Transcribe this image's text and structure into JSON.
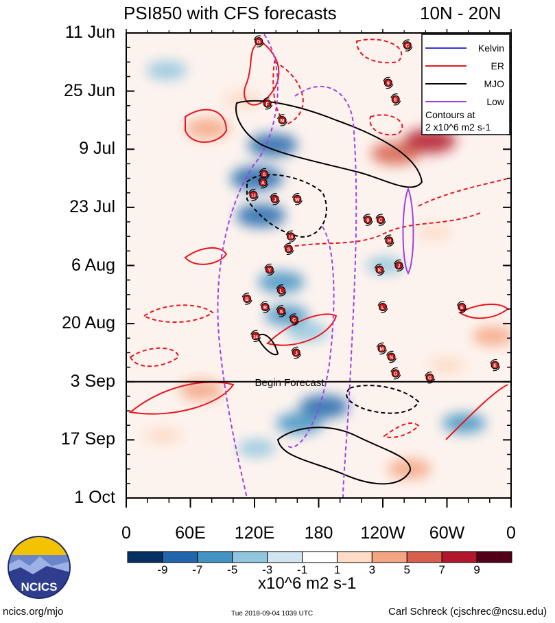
{
  "header": {
    "title": "PSI850 with CFS forecasts",
    "region": "10N - 20N"
  },
  "footer": {
    "site": "ncics.org/mjo",
    "timestamp": "Tue 2018-09-04 1039 UTC",
    "author": "Carl Schreck (cjschrec@ncsu.edu)"
  },
  "logo": {
    "text": "NCICS"
  },
  "chart_data": {
    "type": "heatmap",
    "title": "PSI850 with CFS forecasts",
    "subtitle": "10N - 20N",
    "x_tick_labels": [
      "0",
      "60E",
      "120E",
      "180",
      "120W",
      "60W",
      "0"
    ],
    "x_tick_values_deg_east": [
      0,
      60,
      120,
      180,
      240,
      300,
      360
    ],
    "y_tick_labels": [
      "11 Jun",
      "25 Jun",
      "9 Jul",
      "23 Jul",
      "6 Aug",
      "20 Aug",
      "3 Sep",
      "17 Sep",
      "1 Oct"
    ],
    "y_tick_days_since_11jun": [
      0,
      14,
      28,
      42,
      56,
      70,
      84,
      98,
      112
    ],
    "xlim_deg_east": [
      0,
      360
    ],
    "ylim_days_since_11jun": [
      0,
      112
    ],
    "forecast_start_label": "Begin Forecast",
    "forecast_start_day": 84,
    "legend": {
      "entries": [
        {
          "label": "Kelvin",
          "color": "#3333dd"
        },
        {
          "label": "ER",
          "color": "#e8141c"
        },
        {
          "label": "MJO",
          "color": "#000000"
        },
        {
          "label": "Low",
          "color": "#a040e0"
        }
      ],
      "note_line1": "Contours at",
      "note_line2": "2 x10^6 m2 s-1",
      "placement": "top-right"
    },
    "colorbar": {
      "units": "x10^6 m2 s-1",
      "labels": [
        "-9",
        "-7",
        "-5",
        "-3",
        "-1",
        "1",
        "3",
        "5",
        "7",
        "9"
      ],
      "colors": [
        "#053061",
        "#2166ac",
        "#4393c3",
        "#92c5de",
        "#d1e5f0",
        "#ffffff",
        "#fddbc7",
        "#f4a582",
        "#d6604d",
        "#b2182b",
        "#67001f"
      ]
    },
    "anomaly_blobs": [
      {
        "lon": 38,
        "day": 9,
        "value": -4
      },
      {
        "lon": 108,
        "day": 16,
        "value": 3
      },
      {
        "lon": 76,
        "day": 23,
        "value": 5
      },
      {
        "lon": 137,
        "day": 27,
        "value": -7
      },
      {
        "lon": 122,
        "day": 35,
        "value": -8
      },
      {
        "lon": 126,
        "day": 44,
        "value": -7
      },
      {
        "lon": 145,
        "day": 60,
        "value": -6
      },
      {
        "lon": 150,
        "day": 68,
        "value": -5
      },
      {
        "lon": 170,
        "day": 72,
        "value": -4
      },
      {
        "lon": 252,
        "day": 29,
        "value": 7
      },
      {
        "lon": 284,
        "day": 26,
        "value": 8
      },
      {
        "lon": 242,
        "day": 56,
        "value": -3
      },
      {
        "lon": 288,
        "day": 48,
        "value": 2
      },
      {
        "lon": 70,
        "day": 86,
        "value": 5
      },
      {
        "lon": 35,
        "day": 97,
        "value": 3
      },
      {
        "lon": 185,
        "day": 90,
        "value": -7
      },
      {
        "lon": 162,
        "day": 94,
        "value": -6
      },
      {
        "lon": 316,
        "day": 94,
        "value": -5
      },
      {
        "lon": 265,
        "day": 105,
        "value": 5
      },
      {
        "lon": 122,
        "day": 100,
        "value": -3
      },
      {
        "lon": 343,
        "day": 73,
        "value": 4
      },
      {
        "lon": 300,
        "day": 80,
        "value": 3
      }
    ],
    "storm_markers": [
      {
        "id": "G",
        "lon": 124,
        "day": 2
      },
      {
        "id": "C",
        "lon": 263,
        "day": 3
      },
      {
        "id": "9",
        "lon": 245,
        "day": 12
      },
      {
        "id": "E",
        "lon": 252,
        "day": 16
      },
      {
        "id": "F",
        "lon": 132,
        "day": 17
      },
      {
        "id": "M",
        "lon": 146,
        "day": 21
      },
      {
        "id": "S",
        "lon": 129,
        "day": 34
      },
      {
        "id": "A",
        "lon": 128,
        "day": 36
      },
      {
        "id": "13",
        "lon": 119,
        "day": 39
      },
      {
        "id": "J",
        "lon": 139,
        "day": 40
      },
      {
        "id": "W",
        "lon": 160,
        "day": 40
      },
      {
        "id": "9",
        "lon": 226,
        "day": 45
      },
      {
        "id": "C",
        "lon": 238,
        "day": 45
      },
      {
        "id": "16",
        "lon": 154,
        "day": 49
      },
      {
        "id": "H",
        "lon": 246,
        "day": 50
      },
      {
        "id": "S",
        "lon": 152,
        "day": 52
      },
      {
        "id": "K",
        "lon": 237,
        "day": 57
      },
      {
        "id": "J",
        "lon": 255,
        "day": 56
      },
      {
        "id": "Y",
        "lon": 134,
        "day": 57
      },
      {
        "id": "L",
        "lon": 145,
        "day": 62
      },
      {
        "id": "B",
        "lon": 113,
        "day": 64
      },
      {
        "id": "R",
        "lon": 130,
        "day": 66
      },
      {
        "id": "S",
        "lon": 145,
        "day": 67
      },
      {
        "id": "L",
        "lon": 240,
        "day": 66
      },
      {
        "id": "E",
        "lon": 314,
        "day": 66
      },
      {
        "id": "C",
        "lon": 157,
        "day": 69
      },
      {
        "id": "24",
        "lon": 121,
        "day": 73
      },
      {
        "id": "J",
        "lon": 159,
        "day": 77
      },
      {
        "id": "M",
        "lon": 239,
        "day": 76
      },
      {
        "id": "N",
        "lon": 248,
        "day": 78
      },
      {
        "id": "G",
        "lon": 252,
        "day": 82
      },
      {
        "id": "G",
        "lon": 284,
        "day": 83
      },
      {
        "id": "E",
        "lon": 345,
        "day": 80
      }
    ]
  }
}
